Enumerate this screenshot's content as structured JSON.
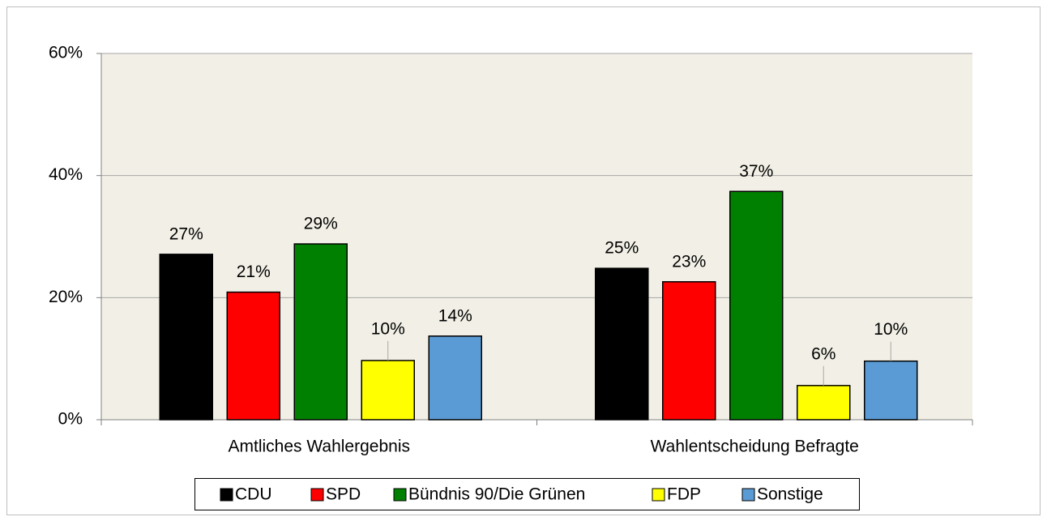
{
  "chart_data": {
    "type": "bar",
    "categories": [
      "Amtliches Wahlergebnis",
      "Wahlentscheidung Befragte"
    ],
    "series": [
      {
        "name": "CDU",
        "color": "#000000",
        "values": [
          27.1,
          24.8
        ],
        "value_labels": [
          "27%",
          "25%"
        ]
      },
      {
        "name": "SPD",
        "color": "#ff0000",
        "values": [
          20.9,
          22.6
        ],
        "value_labels": [
          "21%",
          "23%"
        ]
      },
      {
        "name": "Bündnis 90/Die Grünen",
        "color": "#008000",
        "values": [
          28.8,
          37.4
        ],
        "value_labels": [
          "29%",
          "37%"
        ]
      },
      {
        "name": "FDP",
        "color": "#ffff00",
        "values": [
          9.7,
          5.6
        ],
        "value_labels": [
          "10%",
          "6%"
        ]
      },
      {
        "name": "Sonstige",
        "color": "#5b9bd5",
        "values": [
          13.7,
          9.6
        ],
        "value_labels": [
          "14%",
          "10%"
        ]
      }
    ],
    "ylim": [
      0,
      60
    ],
    "yticks": [
      {
        "value": 0,
        "label": "0%"
      },
      {
        "value": 20,
        "label": "20%"
      },
      {
        "value": 40,
        "label": "40%"
      },
      {
        "value": 60,
        "label": "60%"
      }
    ],
    "grid": true,
    "legend": "bottom"
  }
}
